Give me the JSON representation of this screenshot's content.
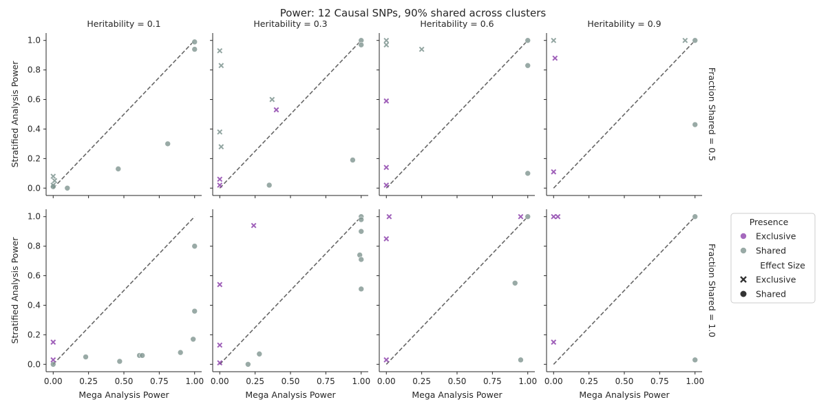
{
  "title": "Power: 12 Causal SNPs, 90% shared across clusters",
  "colors": {
    "exclusive": "#8e44ad",
    "shared": "#7f9590",
    "diagonal": "#666666",
    "axis": "#262626"
  },
  "chart_data": {
    "type": "scatter",
    "xlabel": "Mega Analysis Power",
    "ylabel": "Stratified Analysis Power",
    "xlim": [
      -0.05,
      1.05
    ],
    "ylim": [
      -0.05,
      1.05
    ],
    "xticks": [
      "0.00",
      "0.25",
      "0.50",
      "0.75",
      "1.00"
    ],
    "yticks": [
      "0.0",
      "0.2",
      "0.4",
      "0.6",
      "0.8",
      "1.0"
    ],
    "legend": {
      "placement": "right",
      "hue_title": "Presence",
      "hue_items": [
        "Exclusive",
        "Shared"
      ],
      "style_title": "Effect Size",
      "style_items": [
        "Exclusive",
        "Shared"
      ]
    },
    "column_titles": [
      "Heritability = 0.1",
      "Heritability = 0.3",
      "Heritability = 0.6",
      "Heritability = 0.9"
    ],
    "row_titles": [
      "Fraction Shared = 0.5",
      "Fraction Shared = 1.0"
    ],
    "panels": [
      {
        "row": 0,
        "col": 0,
        "points": [
          {
            "x": 1.0,
            "y": 0.99,
            "presence": "Shared",
            "effect": "Shared"
          },
          {
            "x": 1.0,
            "y": 0.94,
            "presence": "Shared",
            "effect": "Shared"
          },
          {
            "x": 0.81,
            "y": 0.3,
            "presence": "Shared",
            "effect": "Shared"
          },
          {
            "x": 0.46,
            "y": 0.13,
            "presence": "Shared",
            "effect": "Shared"
          },
          {
            "x": 0.1,
            "y": 0.0,
            "presence": "Shared",
            "effect": "Shared"
          },
          {
            "x": 0.0,
            "y": 0.01,
            "presence": "Shared",
            "effect": "Shared"
          },
          {
            "x": 0.0,
            "y": 0.08,
            "presence": "Shared",
            "effect": "Exclusive"
          },
          {
            "x": 0.01,
            "y": 0.05,
            "presence": "Shared",
            "effect": "Exclusive"
          },
          {
            "x": 0.0,
            "y": 0.02,
            "presence": "Shared",
            "effect": "Exclusive"
          }
        ]
      },
      {
        "row": 0,
        "col": 1,
        "points": [
          {
            "x": 1.0,
            "y": 1.0,
            "presence": "Shared",
            "effect": "Shared"
          },
          {
            "x": 1.0,
            "y": 0.97,
            "presence": "Shared",
            "effect": "Shared"
          },
          {
            "x": 0.94,
            "y": 0.19,
            "presence": "Shared",
            "effect": "Shared"
          },
          {
            "x": 0.35,
            "y": 0.02,
            "presence": "Shared",
            "effect": "Shared"
          },
          {
            "x": 0.0,
            "y": 0.93,
            "presence": "Shared",
            "effect": "Exclusive"
          },
          {
            "x": 0.01,
            "y": 0.83,
            "presence": "Shared",
            "effect": "Exclusive"
          },
          {
            "x": 0.37,
            "y": 0.6,
            "presence": "Shared",
            "effect": "Exclusive"
          },
          {
            "x": 0.0,
            "y": 0.38,
            "presence": "Shared",
            "effect": "Exclusive"
          },
          {
            "x": 0.01,
            "y": 0.28,
            "presence": "Shared",
            "effect": "Exclusive"
          },
          {
            "x": 0.4,
            "y": 0.53,
            "presence": "Exclusive",
            "effect": "Exclusive"
          },
          {
            "x": 0.0,
            "y": 0.06,
            "presence": "Exclusive",
            "effect": "Exclusive"
          },
          {
            "x": 0.0,
            "y": 0.02,
            "presence": "Exclusive",
            "effect": "Exclusive"
          }
        ]
      },
      {
        "row": 0,
        "col": 2,
        "points": [
          {
            "x": 1.0,
            "y": 1.0,
            "presence": "Shared",
            "effect": "Shared"
          },
          {
            "x": 1.0,
            "y": 0.83,
            "presence": "Shared",
            "effect": "Shared"
          },
          {
            "x": 1.0,
            "y": 0.1,
            "presence": "Shared",
            "effect": "Shared"
          },
          {
            "x": 0.0,
            "y": 1.0,
            "presence": "Shared",
            "effect": "Exclusive"
          },
          {
            "x": 0.0,
            "y": 0.97,
            "presence": "Shared",
            "effect": "Exclusive"
          },
          {
            "x": 0.25,
            "y": 0.94,
            "presence": "Shared",
            "effect": "Exclusive"
          },
          {
            "x": 0.0,
            "y": 0.59,
            "presence": "Exclusive",
            "effect": "Exclusive"
          },
          {
            "x": 0.0,
            "y": 0.14,
            "presence": "Exclusive",
            "effect": "Exclusive"
          },
          {
            "x": 0.0,
            "y": 0.02,
            "presence": "Exclusive",
            "effect": "Exclusive"
          }
        ]
      },
      {
        "row": 0,
        "col": 3,
        "points": [
          {
            "x": 1.0,
            "y": 1.0,
            "presence": "Shared",
            "effect": "Shared"
          },
          {
            "x": 1.0,
            "y": 0.43,
            "presence": "Shared",
            "effect": "Shared"
          },
          {
            "x": 0.0,
            "y": 1.0,
            "presence": "Shared",
            "effect": "Exclusive"
          },
          {
            "x": 0.93,
            "y": 1.0,
            "presence": "Shared",
            "effect": "Exclusive"
          },
          {
            "x": 0.01,
            "y": 0.88,
            "presence": "Exclusive",
            "effect": "Exclusive"
          },
          {
            "x": 0.0,
            "y": 0.11,
            "presence": "Exclusive",
            "effect": "Exclusive"
          }
        ]
      },
      {
        "row": 1,
        "col": 0,
        "points": [
          {
            "x": 1.0,
            "y": 0.8,
            "presence": "Shared",
            "effect": "Shared"
          },
          {
            "x": 1.0,
            "y": 0.36,
            "presence": "Shared",
            "effect": "Shared"
          },
          {
            "x": 0.99,
            "y": 0.17,
            "presence": "Shared",
            "effect": "Shared"
          },
          {
            "x": 0.9,
            "y": 0.08,
            "presence": "Shared",
            "effect": "Shared"
          },
          {
            "x": 0.61,
            "y": 0.06,
            "presence": "Shared",
            "effect": "Shared"
          },
          {
            "x": 0.63,
            "y": 0.06,
            "presence": "Shared",
            "effect": "Shared"
          },
          {
            "x": 0.23,
            "y": 0.05,
            "presence": "Shared",
            "effect": "Shared"
          },
          {
            "x": 0.47,
            "y": 0.02,
            "presence": "Shared",
            "effect": "Shared"
          },
          {
            "x": 0.0,
            "y": 0.0,
            "presence": "Shared",
            "effect": "Shared"
          },
          {
            "x": 0.0,
            "y": 0.15,
            "presence": "Exclusive",
            "effect": "Exclusive"
          },
          {
            "x": 0.0,
            "y": 0.03,
            "presence": "Exclusive",
            "effect": "Exclusive"
          }
        ]
      },
      {
        "row": 1,
        "col": 1,
        "points": [
          {
            "x": 1.0,
            "y": 1.0,
            "presence": "Shared",
            "effect": "Shared"
          },
          {
            "x": 1.0,
            "y": 0.98,
            "presence": "Shared",
            "effect": "Shared"
          },
          {
            "x": 1.0,
            "y": 0.9,
            "presence": "Shared",
            "effect": "Shared"
          },
          {
            "x": 0.99,
            "y": 0.74,
            "presence": "Shared",
            "effect": "Shared"
          },
          {
            "x": 1.0,
            "y": 0.71,
            "presence": "Shared",
            "effect": "Shared"
          },
          {
            "x": 1.0,
            "y": 0.51,
            "presence": "Shared",
            "effect": "Shared"
          },
          {
            "x": 0.28,
            "y": 0.07,
            "presence": "Shared",
            "effect": "Shared"
          },
          {
            "x": 0.2,
            "y": 0.0,
            "presence": "Shared",
            "effect": "Shared"
          },
          {
            "x": 0.24,
            "y": 0.94,
            "presence": "Exclusive",
            "effect": "Exclusive"
          },
          {
            "x": 0.0,
            "y": 0.54,
            "presence": "Exclusive",
            "effect": "Exclusive"
          },
          {
            "x": 0.0,
            "y": 0.13,
            "presence": "Exclusive",
            "effect": "Exclusive"
          },
          {
            "x": 0.0,
            "y": 0.01,
            "presence": "Exclusive",
            "effect": "Exclusive"
          }
        ]
      },
      {
        "row": 1,
        "col": 2,
        "points": [
          {
            "x": 1.0,
            "y": 1.0,
            "presence": "Shared",
            "effect": "Shared"
          },
          {
            "x": 0.91,
            "y": 0.55,
            "presence": "Shared",
            "effect": "Shared"
          },
          {
            "x": 0.95,
            "y": 0.03,
            "presence": "Shared",
            "effect": "Shared"
          },
          {
            "x": 0.02,
            "y": 1.0,
            "presence": "Exclusive",
            "effect": "Exclusive"
          },
          {
            "x": 0.95,
            "y": 1.0,
            "presence": "Exclusive",
            "effect": "Exclusive"
          },
          {
            "x": 0.0,
            "y": 0.85,
            "presence": "Exclusive",
            "effect": "Exclusive"
          },
          {
            "x": 0.0,
            "y": 0.03,
            "presence": "Exclusive",
            "effect": "Exclusive"
          }
        ]
      },
      {
        "row": 1,
        "col": 3,
        "points": [
          {
            "x": 1.0,
            "y": 1.0,
            "presence": "Shared",
            "effect": "Shared"
          },
          {
            "x": 1.0,
            "y": 0.03,
            "presence": "Shared",
            "effect": "Shared"
          },
          {
            "x": 0.0,
            "y": 1.0,
            "presence": "Exclusive",
            "effect": "Exclusive"
          },
          {
            "x": 0.03,
            "y": 1.0,
            "presence": "Exclusive",
            "effect": "Exclusive"
          },
          {
            "x": 0.0,
            "y": 0.15,
            "presence": "Exclusive",
            "effect": "Exclusive"
          }
        ]
      }
    ]
  }
}
